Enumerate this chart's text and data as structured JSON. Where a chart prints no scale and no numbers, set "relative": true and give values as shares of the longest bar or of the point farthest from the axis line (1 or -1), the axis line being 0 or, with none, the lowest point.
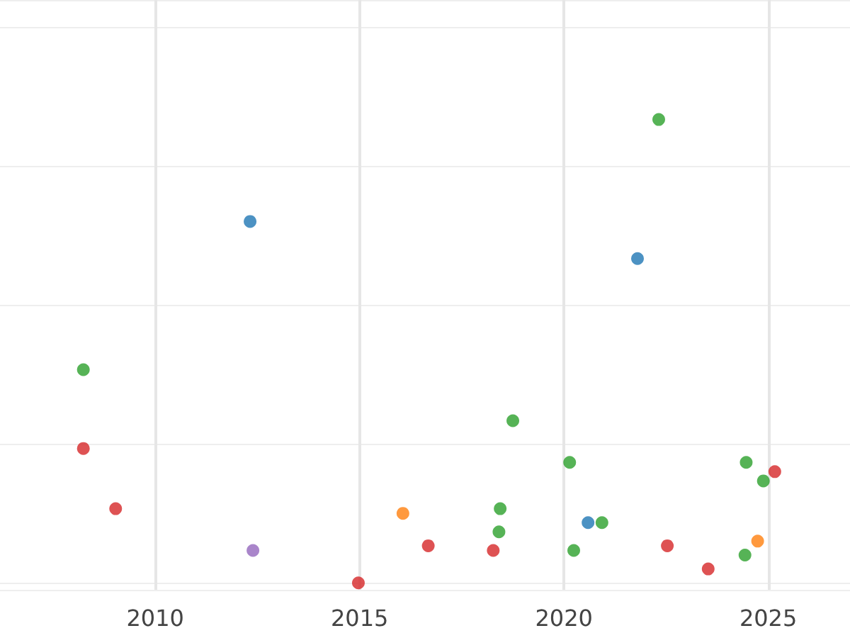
{
  "chart_data": {
    "type": "scatter",
    "relative": true,
    "xlim": [
      2006.2,
      2027
    ],
    "xticks": [
      2010,
      2015,
      2020,
      2025
    ],
    "grid": true,
    "marker": "circle",
    "tick_labels": "x",
    "series": [
      {
        "color": "#1f77b4",
        "x": [
          2012.32,
          2021.8,
          2020.59
        ],
        "values": [
          0.78,
          0.7,
          0.13
        ]
      },
      {
        "color": "#ff7f0e",
        "x": [
          2016.06,
          2024.74
        ],
        "values": [
          0.15,
          0.09
        ]
      },
      {
        "color": "#2ca02c",
        "x": [
          2022.32,
          2008.24,
          2018.75,
          2020.14,
          2024.46,
          2024.88,
          2018.44,
          2020.93,
          2018.41,
          2020.24,
          2024.43
        ],
        "values": [
          1,
          0.46,
          0.35,
          0.26,
          0.26,
          0.22,
          0.16,
          0.13,
          0.11,
          0.07,
          0.06
        ]
      },
      {
        "color": "#d62728",
        "x": [
          2008.24,
          2009.03,
          2016.68,
          2014.97,
          2018.27,
          2022.53,
          2023.53,
          2025.16
        ],
        "values": [
          0.29,
          0.16,
          0.08,
          0,
          0.07,
          0.08,
          0.03,
          0.24
        ]
      },
      {
        "color": "#9467bd",
        "x": [
          2012.39
        ],
        "values": [
          0.07
        ]
      }
    ]
  }
}
